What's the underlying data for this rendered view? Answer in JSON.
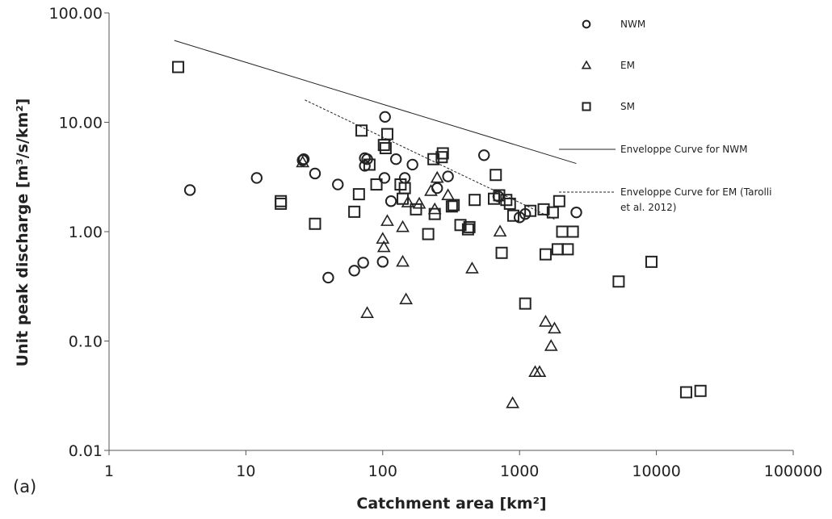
{
  "chart_data": {
    "type": "scatter",
    "panel_label": "(a)",
    "xlabel": "Catchment area [km²]",
    "ylabel": "Unit peak discharge [m³/s/km²]",
    "xscale": "log",
    "yscale": "log",
    "xlim": [
      1,
      100000
    ],
    "ylim": [
      0.01,
      100
    ],
    "x_ticks": [
      "1",
      "10",
      "100",
      "1000",
      "10000",
      "100000"
    ],
    "y_ticks": [
      "0.01",
      "0.10",
      "1.00",
      "10.00",
      "100.00"
    ],
    "grid": false,
    "legend_position": "right",
    "series": [
      {
        "name": "NWM",
        "marker": "circle",
        "points": [
          [
            3.9,
            2.4
          ],
          [
            12,
            3.1
          ],
          [
            26,
            4.5
          ],
          [
            26.5,
            4.6
          ],
          [
            32,
            3.4
          ],
          [
            40,
            0.38
          ],
          [
            47,
            2.7
          ],
          [
            62,
            0.44
          ],
          [
            72,
            0.52
          ],
          [
            74,
            4.7
          ],
          [
            74,
            4.0
          ],
          [
            77,
            4.6
          ],
          [
            100,
            0.53
          ],
          [
            104,
            11.2
          ],
          [
            103,
            3.1
          ],
          [
            115,
            1.9
          ],
          [
            125,
            4.6
          ],
          [
            145,
            3.1
          ],
          [
            165,
            4.1
          ],
          [
            250,
            2.5
          ],
          [
            300,
            3.2
          ],
          [
            550,
            5.0
          ],
          [
            700,
            2.1
          ],
          [
            1000,
            1.35
          ],
          [
            1100,
            1.45
          ],
          [
            2600,
            1.5
          ]
        ]
      },
      {
        "name": "EM",
        "marker": "triangle",
        "points": [
          [
            26,
            4.3
          ],
          [
            77,
            0.18
          ],
          [
            100,
            0.86
          ],
          [
            102,
            0.72
          ],
          [
            108,
            1.25
          ],
          [
            140,
            1.1
          ],
          [
            140,
            0.53
          ],
          [
            148,
            0.24
          ],
          [
            153,
            1.85
          ],
          [
            185,
            1.8
          ],
          [
            225,
            2.35
          ],
          [
            240,
            1.6
          ],
          [
            250,
            3.1
          ],
          [
            300,
            2.15
          ],
          [
            450,
            0.46
          ],
          [
            720,
            1.0
          ],
          [
            890,
            0.027
          ],
          [
            1300,
            0.052
          ],
          [
            1400,
            0.052
          ],
          [
            1550,
            0.15
          ],
          [
            1700,
            0.09
          ],
          [
            1800,
            0.13
          ]
        ]
      },
      {
        "name": "SM",
        "marker": "square",
        "points": [
          [
            3.2,
            32
          ],
          [
            18,
            1.8
          ],
          [
            18,
            1.9
          ],
          [
            32,
            1.18
          ],
          [
            62,
            1.52
          ],
          [
            67,
            2.2
          ],
          [
            70,
            8.4
          ],
          [
            80,
            4.1
          ],
          [
            90,
            2.7
          ],
          [
            102,
            6.2
          ],
          [
            105,
            5.8
          ],
          [
            108,
            7.8
          ],
          [
            135,
            2.7
          ],
          [
            140,
            2.0
          ],
          [
            145,
            2.5
          ],
          [
            175,
            1.6
          ],
          [
            215,
            0.95
          ],
          [
            235,
            4.6
          ],
          [
            240,
            1.45
          ],
          [
            270,
            4.8
          ],
          [
            275,
            5.2
          ],
          [
            320,
            1.7
          ],
          [
            330,
            1.75
          ],
          [
            370,
            1.15
          ],
          [
            420,
            1.05
          ],
          [
            430,
            1.1
          ],
          [
            470,
            1.95
          ],
          [
            650,
            2.0
          ],
          [
            670,
            3.3
          ],
          [
            710,
            2.15
          ],
          [
            740,
            0.64
          ],
          [
            800,
            1.95
          ],
          [
            850,
            1.8
          ],
          [
            900,
            1.4
          ],
          [
            1100,
            0.22
          ],
          [
            1200,
            1.55
          ],
          [
            1500,
            1.6
          ],
          [
            1550,
            0.62
          ],
          [
            1750,
            1.5
          ],
          [
            1900,
            0.69
          ],
          [
            1950,
            1.9
          ],
          [
            2050,
            1.0
          ],
          [
            2250,
            0.69
          ],
          [
            2450,
            1.0
          ],
          [
            5300,
            0.35
          ],
          [
            9200,
            0.53
          ],
          [
            16500,
            0.034
          ],
          [
            21000,
            0.035
          ]
        ]
      }
    ],
    "lines": [
      {
        "name": "Enveloppe Curve for NWM",
        "style": "solid",
        "points": [
          [
            3,
            56
          ],
          [
            2600,
            4.2
          ]
        ]
      },
      {
        "name": "Enveloppe Curve for EM (Tarolli et al. 2012)",
        "style": "dashed",
        "points": [
          [
            27,
            16
          ],
          [
            1800,
            1.3
          ]
        ]
      }
    ],
    "legend": [
      {
        "label": "NWM",
        "marker": "circle"
      },
      {
        "label": "EM",
        "marker": "triangle"
      },
      {
        "label": "SM",
        "marker": "square"
      },
      {
        "label": "Enveloppe Curve for NWM",
        "line": "solid"
      },
      {
        "label_lines": [
          "Enveloppe Curve for EM (Tarolli",
          "et al. 2012)"
        ],
        "line": "dashed"
      }
    ]
  }
}
